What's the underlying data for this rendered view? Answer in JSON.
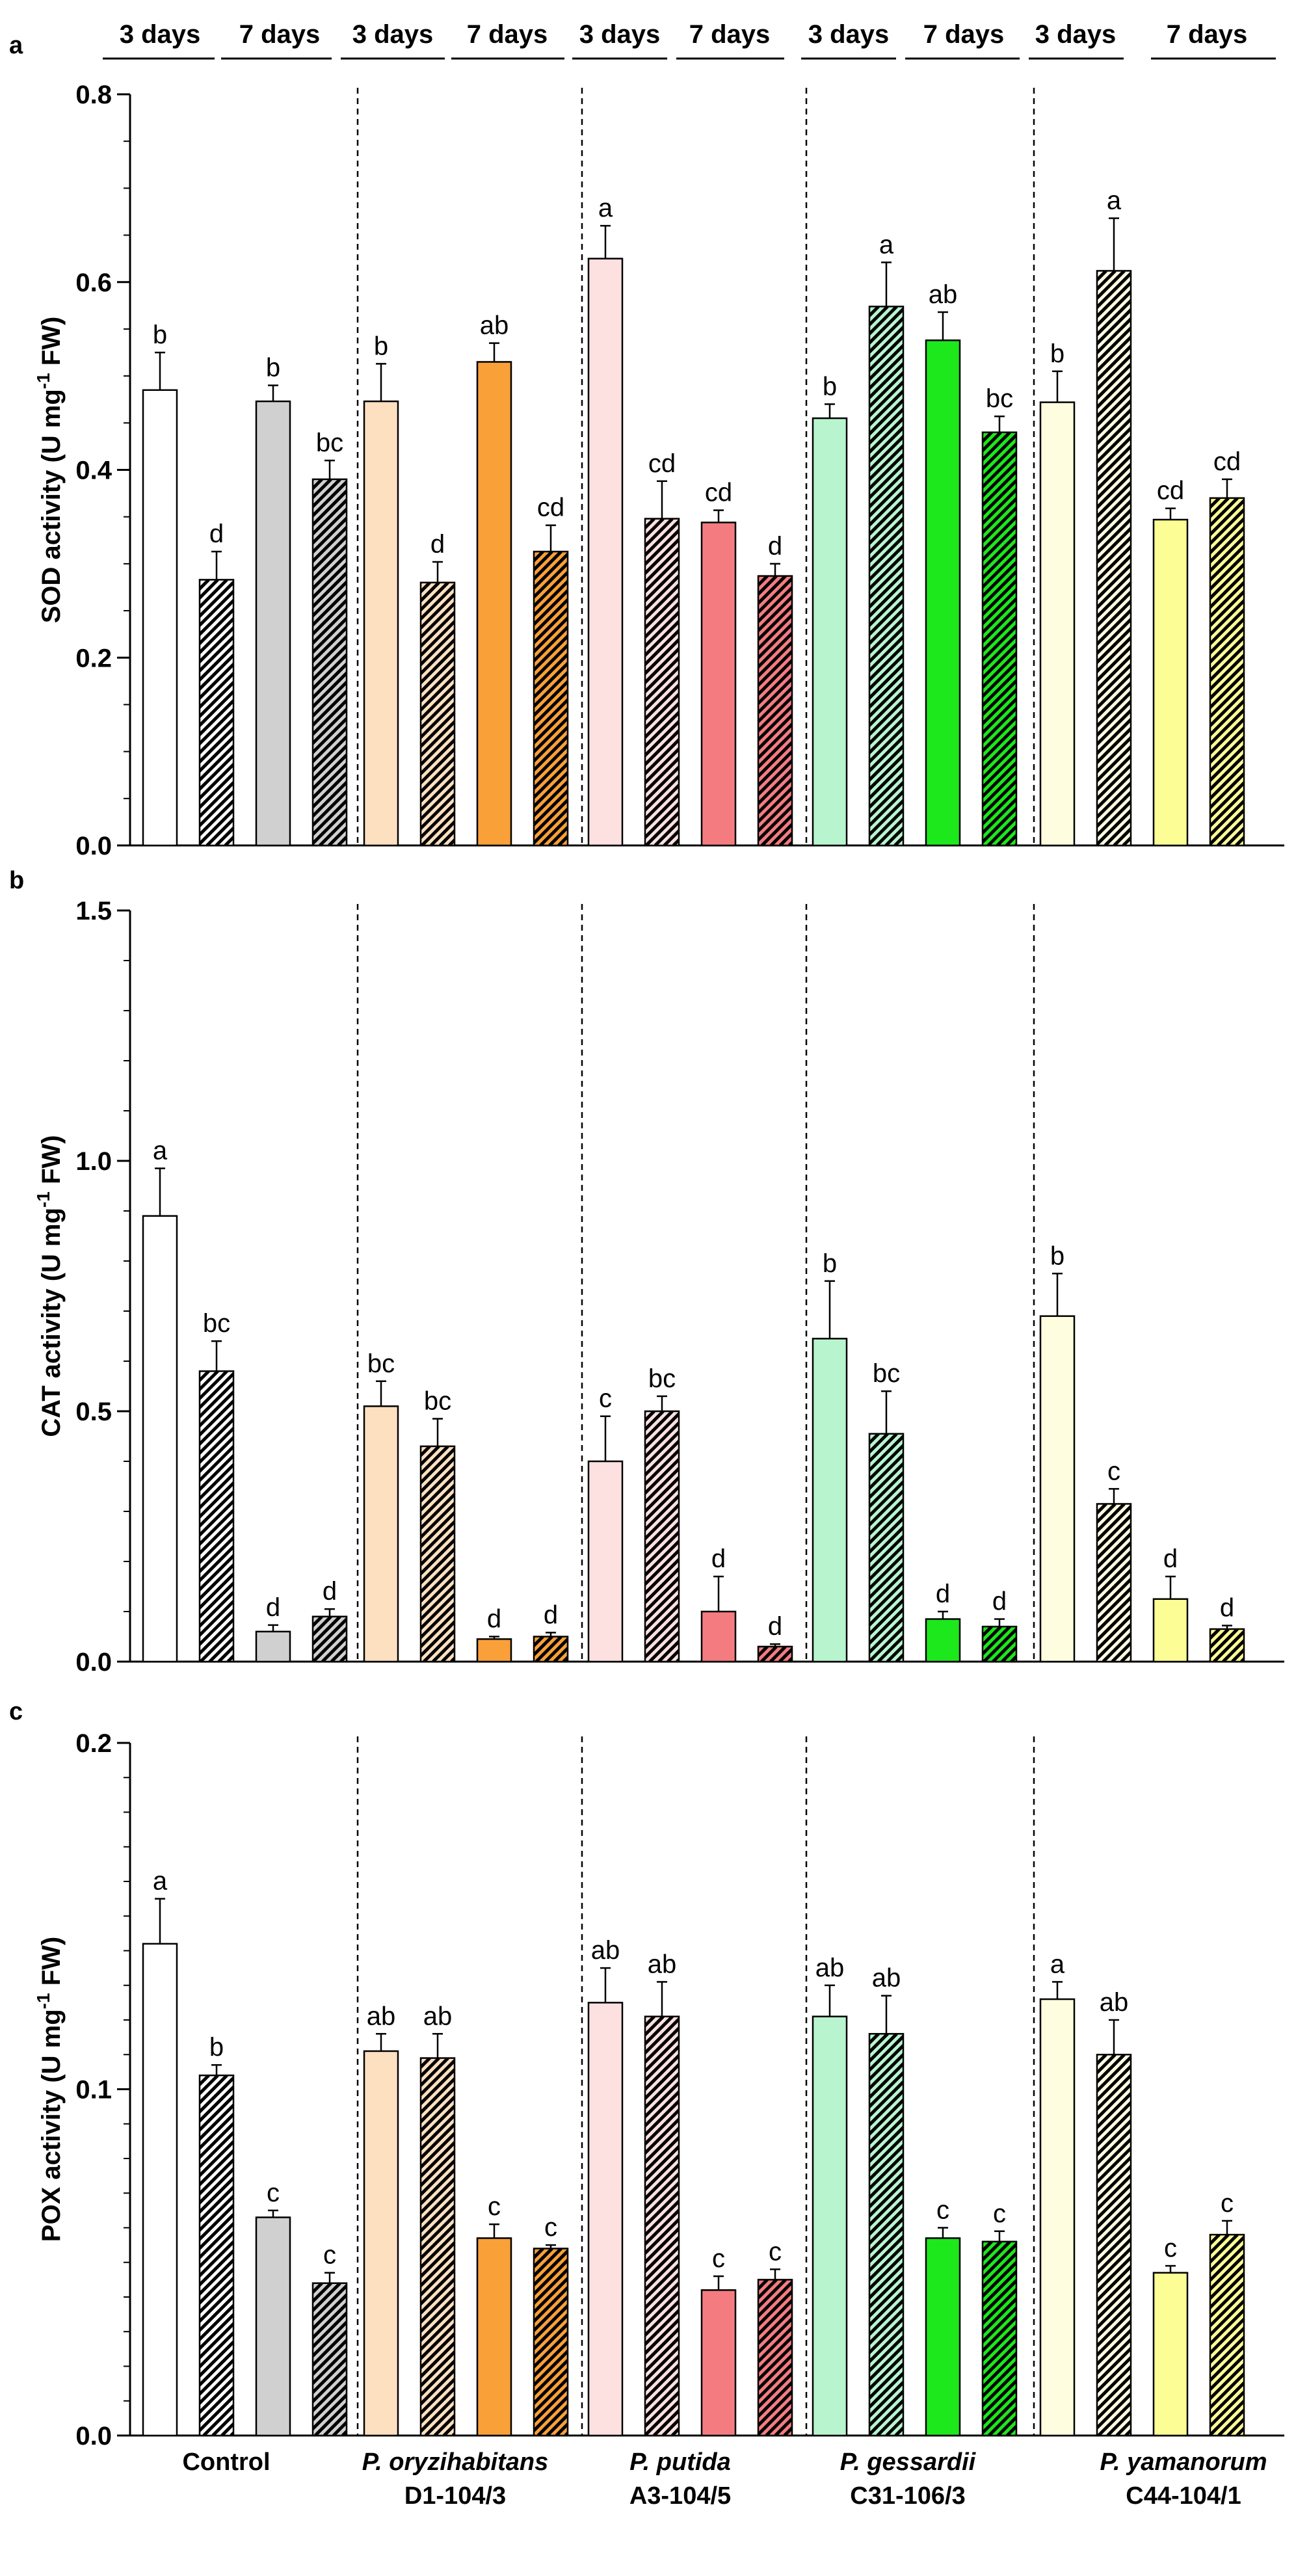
{
  "groups": [
    {
      "name": "Control",
      "strain": "",
      "fill": "#ffffff",
      "fill7": "#d0d0d0"
    },
    {
      "name": "P. oryzihabitans",
      "strain": "D1-104/3",
      "fill": "#fde0c0",
      "fill7": "#f9a038"
    },
    {
      "name": "P. putida",
      "strain": "A3-104/5",
      "fill": "#fde0e0",
      "fill7": "#f47c80"
    },
    {
      "name": "P. gessardii",
      "strain": "C31-106/3",
      "fill": "#b8f5cf",
      "fill7": "#1ce81c"
    },
    {
      "name": "P. yamanorum",
      "strain": "C44-104/1",
      "fill": "#fefde0",
      "fill7": "#fdfd96"
    }
  ],
  "time_headers": [
    "3 days",
    "7 days"
  ],
  "bar_patterns": [
    "solid",
    "hatched",
    "solid",
    "hatched"
  ],
  "chart_data": [
    {
      "type": "bar",
      "panel": "a",
      "ylabel": "SOD activity (U mg",
      "ylabel_sup": "-1",
      "ylabel_end": " FW)",
      "ylim": [
        0,
        0.8
      ],
      "yticks": [
        "0.0",
        "0.2",
        "0.4",
        "0.6",
        "0.8"
      ],
      "ytick_values": [
        0,
        0.2,
        0.4,
        0.6,
        0.8
      ],
      "minor_step": 0.05,
      "values": [
        [
          0.485,
          0.283,
          0.473,
          0.39
        ],
        [
          0.473,
          0.28,
          0.515,
          0.313
        ],
        [
          0.625,
          0.348,
          0.344,
          0.287
        ],
        [
          0.455,
          0.574,
          0.538,
          0.44
        ],
        [
          0.472,
          0.612,
          0.347,
          0.37
        ]
      ],
      "errors": [
        [
          0.04,
          0.03,
          0.017,
          0.02
        ],
        [
          0.04,
          0.022,
          0.02,
          0.028
        ],
        [
          0.035,
          0.04,
          0.013,
          0.013
        ],
        [
          0.015,
          0.047,
          0.03,
          0.017
        ],
        [
          0.033,
          0.056,
          0.012,
          0.02
        ]
      ],
      "labels": [
        [
          "b",
          "d",
          "b",
          "bc"
        ],
        [
          "b",
          "d",
          "ab",
          "cd"
        ],
        [
          "a",
          "cd",
          "cd",
          "d"
        ],
        [
          "b",
          "a",
          "ab",
          "bc"
        ],
        [
          "b",
          "a",
          "cd",
          "cd"
        ]
      ]
    },
    {
      "type": "bar",
      "panel": "b",
      "ylabel": "CAT activity (U mg",
      "ylabel_sup": "-1",
      "ylabel_end": " FW)",
      "ylim": [
        0,
        1.5
      ],
      "yticks": [
        "0.0",
        "0.5",
        "1.0",
        "1.5"
      ],
      "ytick_values": [
        0,
        0.5,
        1.0,
        1.5
      ],
      "minor_step": 0.1,
      "values": [
        [
          0.89,
          0.58,
          0.06,
          0.09
        ],
        [
          0.51,
          0.43,
          0.045,
          0.05
        ],
        [
          0.4,
          0.5,
          0.1,
          0.03
        ],
        [
          0.645,
          0.455,
          0.085,
          0.07
        ],
        [
          0.69,
          0.315,
          0.125,
          0.065
        ]
      ],
      "errors": [
        [
          0.095,
          0.06,
          0.013,
          0.015
        ],
        [
          0.05,
          0.055,
          0.005,
          0.008
        ],
        [
          0.09,
          0.03,
          0.07,
          0.005
        ],
        [
          0.115,
          0.085,
          0.015,
          0.015
        ],
        [
          0.085,
          0.03,
          0.045,
          0.007
        ]
      ],
      "labels": [
        [
          "a",
          "bc",
          "d",
          "d"
        ],
        [
          "bc",
          "bc",
          "d",
          "d"
        ],
        [
          "c",
          "bc",
          "d",
          "d"
        ],
        [
          "b",
          "bc",
          "d",
          "d"
        ],
        [
          "b",
          "c",
          "d",
          "d"
        ]
      ]
    },
    {
      "type": "bar",
      "panel": "c",
      "ylabel": "POX activity (U mg",
      "ylabel_sup": "-1",
      "ylabel_end": " FW)",
      "ylim": [
        0,
        0.2
      ],
      "yticks": [
        "0.0",
        "0.1",
        "0.2"
      ],
      "ytick_values": [
        0,
        0.1,
        0.2
      ],
      "minor_step": 0.01,
      "values": [
        [
          0.142,
          0.104,
          0.063,
          0.044
        ],
        [
          0.111,
          0.109,
          0.057,
          0.054
        ],
        [
          0.125,
          0.121,
          0.042,
          0.045
        ],
        [
          0.121,
          0.116,
          0.057,
          0.056
        ],
        [
          0.126,
          0.11,
          0.047,
          0.058
        ]
      ],
      "errors": [
        [
          0.013,
          0.003,
          0.002,
          0.003
        ],
        [
          0.005,
          0.007,
          0.004,
          0.001
        ],
        [
          0.01,
          0.01,
          0.004,
          0.003
        ],
        [
          0.009,
          0.011,
          0.003,
          0.003
        ],
        [
          0.005,
          0.01,
          0.002,
          0.004
        ]
      ],
      "labels": [
        [
          "a",
          "b",
          "c",
          "c"
        ],
        [
          "ab",
          "ab",
          "c",
          "c"
        ],
        [
          "ab",
          "ab",
          "c",
          "c"
        ],
        [
          "ab",
          "ab",
          "c",
          "c"
        ],
        [
          "a",
          "ab",
          "c",
          "c"
        ]
      ]
    }
  ]
}
